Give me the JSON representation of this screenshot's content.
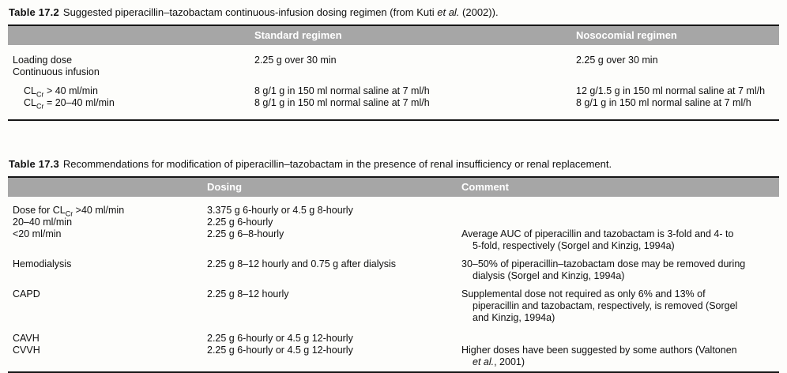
{
  "colors": {
    "header_bg": "#a6a6a6",
    "header_text": "#ffffff",
    "rule": "#161616",
    "page_bg": "#fdfdfb",
    "body_text": "#101010"
  },
  "table172": {
    "caption_label": "Table 17.2",
    "caption_parts": [
      {
        "t": "Suggested piperacillin–tazobactam continuous-infusion dosing regimen (from Kuti "
      },
      {
        "t": "et al.",
        "i": true
      },
      {
        "t": " (2002))."
      }
    ],
    "columns": [
      "",
      "Standard regimen",
      "Nosocomial regimen"
    ],
    "rows": [
      {
        "label": "Loading dose",
        "standard": "2.25 g over 30 min",
        "nosocomial": "2.25 g over 30 min"
      },
      {
        "label": "Continuous infusion",
        "standard": "",
        "nosocomial": ""
      },
      {
        "indent": true,
        "label": [
          {
            "t": "CL"
          },
          {
            "t": "Cr",
            "sub": true
          },
          {
            "t": " > 40 ml/min"
          }
        ],
        "standard": "8 g/1 g in 150 ml normal saline at 7 ml/h",
        "nosocomial": "12 g/1.5 g in 150 ml normal saline at 7 ml/h"
      },
      {
        "indent": true,
        "label": [
          {
            "t": "CL"
          },
          {
            "t": "Cr",
            "sub": true
          },
          {
            "t": " = 20–40 ml/min"
          }
        ],
        "standard": "8 g/1 g in 150 ml normal saline at 7 ml/h",
        "nosocomial": "8 g/1 g in 150 ml normal saline at 7 ml/h"
      }
    ]
  },
  "table173": {
    "caption_label": "Table 17.3",
    "caption_parts": [
      {
        "t": "Recommendations for modification of piperacillin–tazobactam in the presence of renal insufficiency or renal replacement."
      }
    ],
    "columns": [
      "",
      "Dosing",
      "Comment"
    ],
    "rows": [
      {
        "label": [
          {
            "t": "Dose for CL"
          },
          {
            "t": "Cr",
            "sub": true
          },
          {
            "t": " >40 ml/min"
          }
        ],
        "dosing": "3.375 g 6-hourly or 4.5 g 8-hourly",
        "comment": ""
      },
      {
        "label": "20–40 ml/min",
        "dosing": "2.25 g 6-hourly",
        "comment": ""
      },
      {
        "label": "<20 ml/min",
        "dosing": "2.25 g 6–8-hourly",
        "comment": "Average AUC of piperacillin and tazobactam is 3-fold and 4- to\n5-fold, respectively (Sorgel and Kinzig, 1994a)"
      },
      {
        "label": "Hemodialysis",
        "dosing": "2.25 g 8–12 hourly and 0.75 g after dialysis",
        "comment": "30–50% of piperacillin–tazobactam dose may be removed during\ndialysis (Sorgel and Kinzig, 1994a)"
      },
      {
        "label": "CAPD",
        "dosing": "2.25 g 8–12 hourly",
        "comment": "Supplemental dose not required as only 6% and 13% of\npiperacillin and tazobactam, respectively, is removed (Sorgel\nand Kinzig, 1994a)"
      },
      {
        "label": "CAVH",
        "dosing": "2.25 g 6-hourly or 4.5 g 12-hourly",
        "comment": ""
      },
      {
        "label": "CVVH",
        "dosing": "2.25 g 6-hourly or 4.5 g 12-hourly",
        "comment": [
          {
            "t": "Higher doses have been suggested by some authors (Valtonen\n"
          },
          {
            "t": "et al.",
            "i": true
          },
          {
            "t": ", 2001)"
          }
        ]
      }
    ]
  }
}
